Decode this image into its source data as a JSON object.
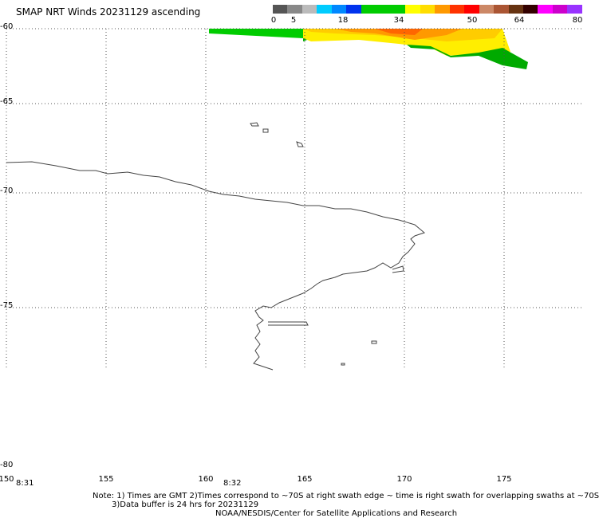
{
  "title": "SMAP NRT Winds 20231129 ascending",
  "colorbar": {
    "labels": [
      "0",
      "5",
      "18",
      "34",
      "50",
      "64",
      "80"
    ],
    "segments": [
      "#555555",
      "#888888",
      "#bbbbbb",
      "#00ccff",
      "#0088ff",
      "#0033ee",
      "#00cc00",
      "#00cc00",
      "#00cc00",
      "#ffff00",
      "#ffdd00",
      "#ff9900",
      "#ff3300",
      "#ff0000",
      "#cc8866",
      "#aa5533",
      "#663311",
      "#330000",
      "#ff00ff",
      "#cc00cc",
      "#9933ff"
    ]
  },
  "latitudes": [
    "-60",
    "-65",
    "-70",
    "-75",
    "-80"
  ],
  "longitudes": [
    "150",
    "155",
    "160",
    "165",
    "170",
    "175"
  ],
  "times": [
    "8:31",
    "8:32"
  ],
  "notes": {
    "line1": "Note: 1) Times are GMT 2)Times correspond to ~70S at right swath edge ~ time is right swath for overlapping swaths at ~70S",
    "line2": "3)Data buffer is 24 hrs for 20231129",
    "line3": "NOAA/NESDIS/Center for Satellite Applications and Research"
  }
}
